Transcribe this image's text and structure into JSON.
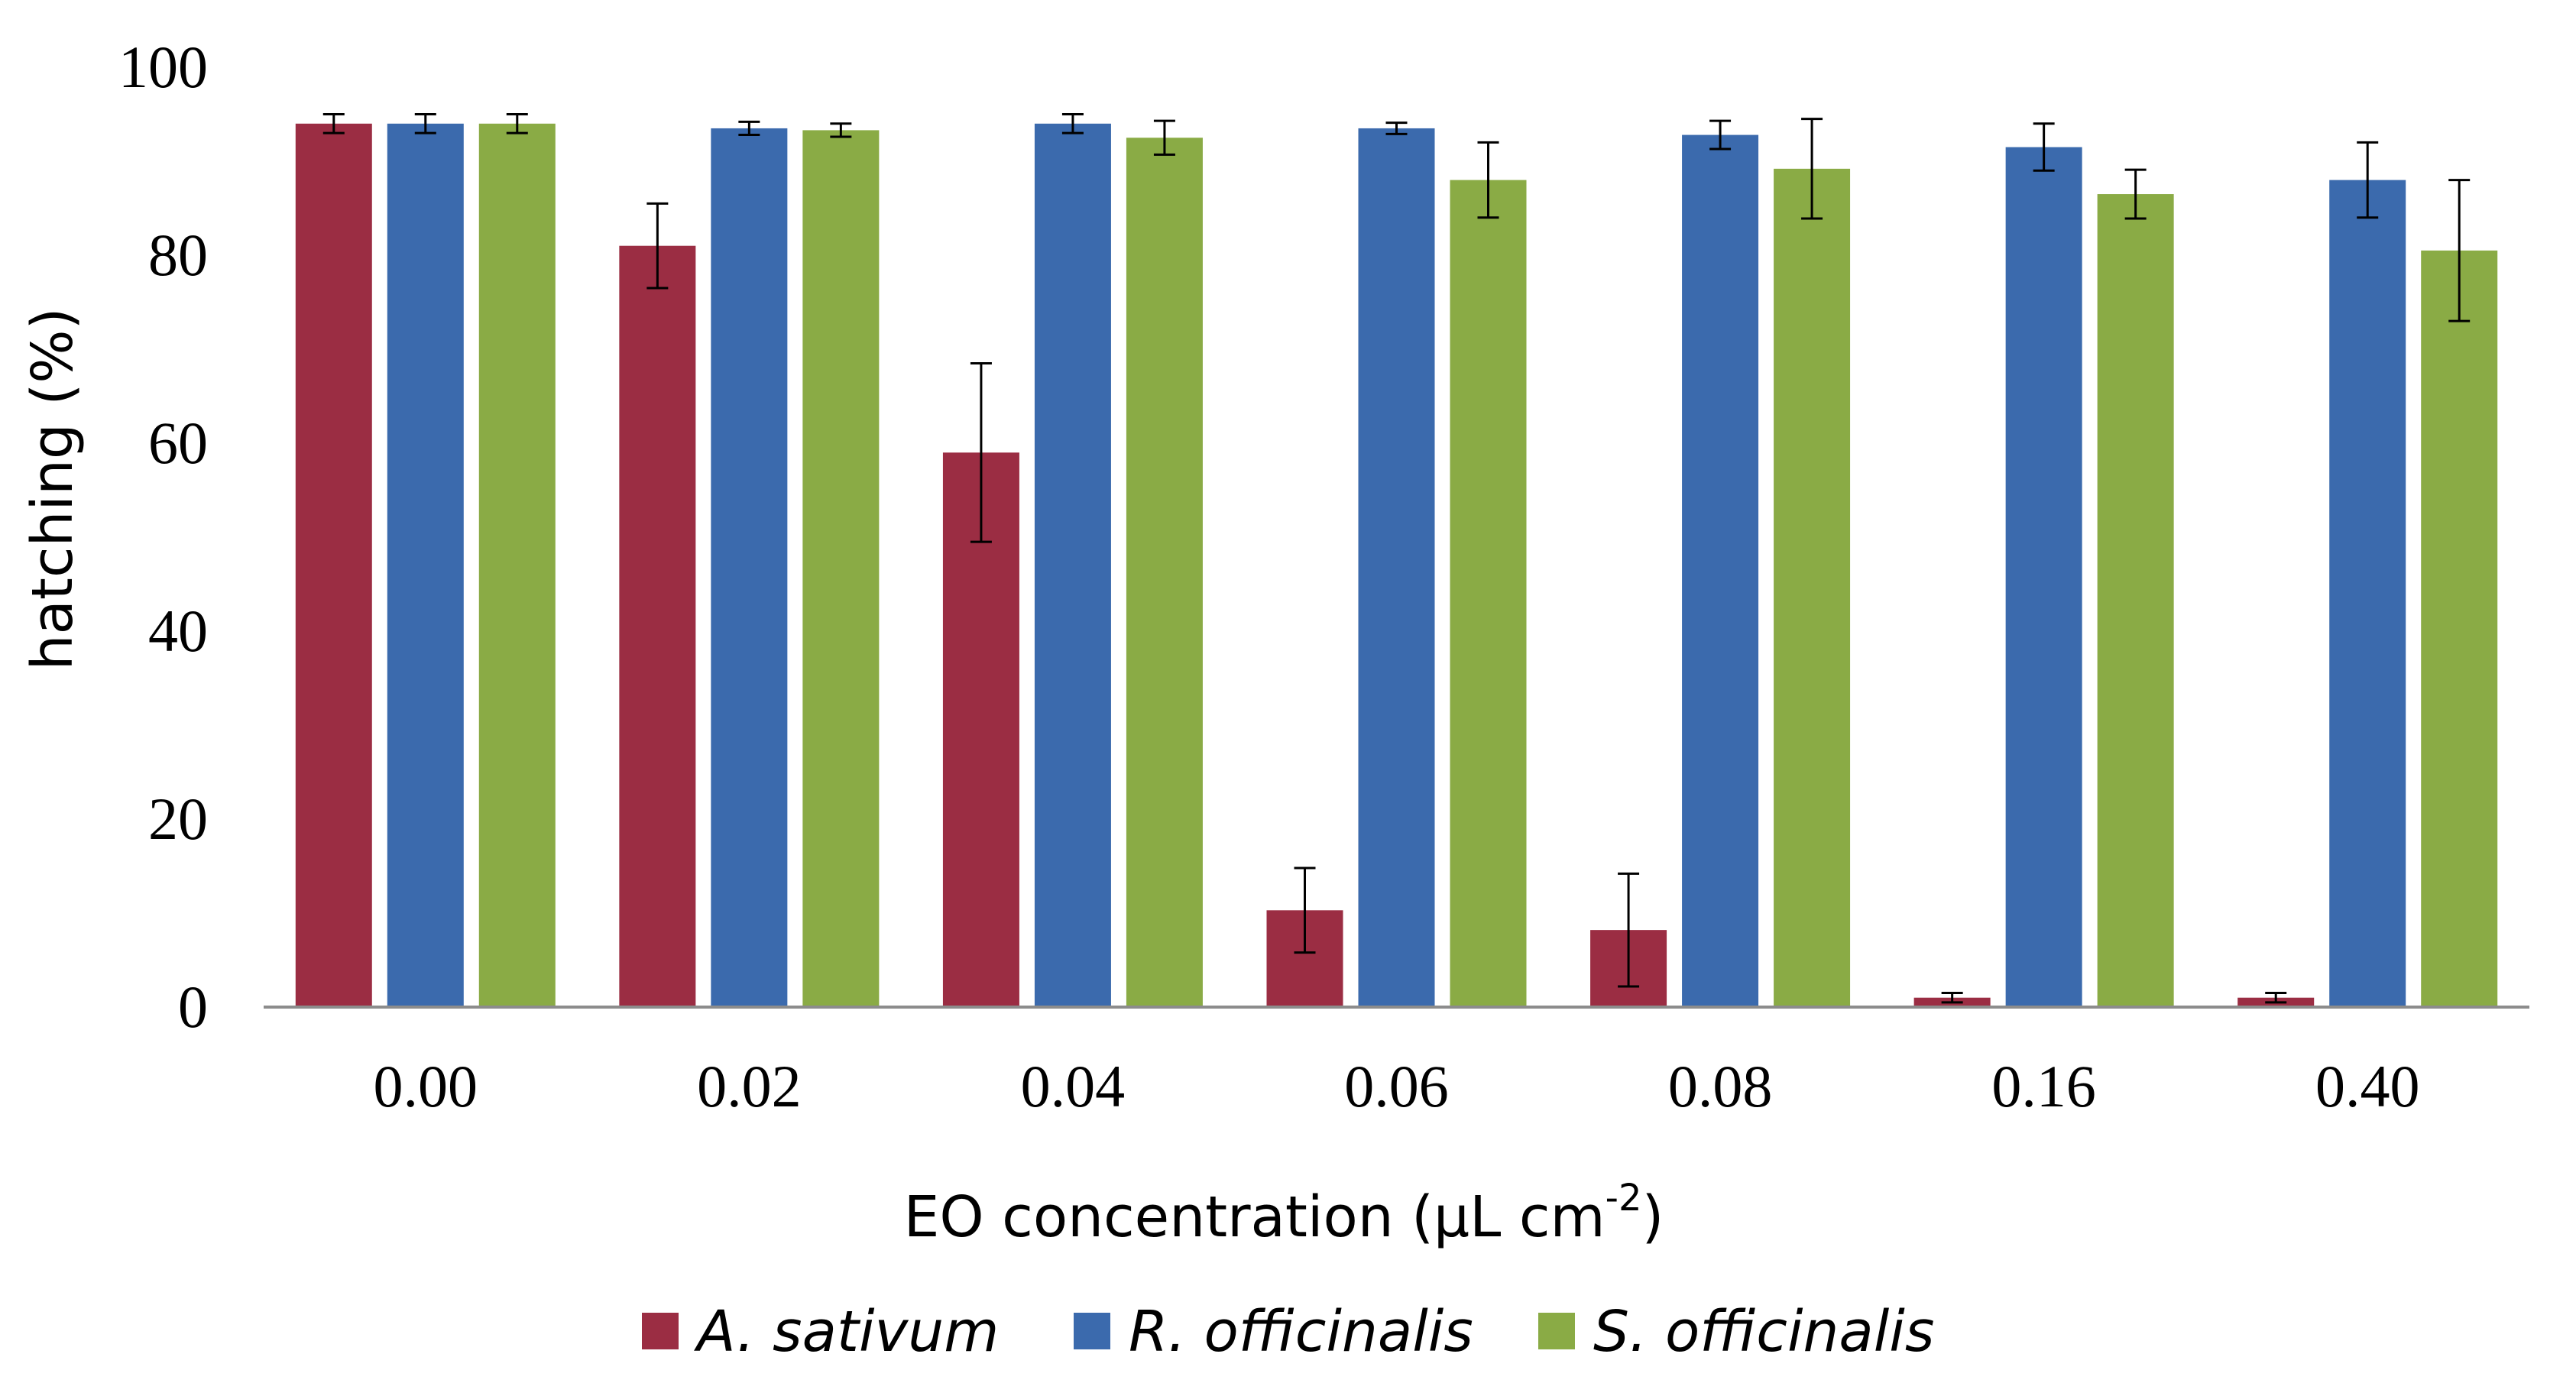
{
  "chart_data": {
    "type": "bar",
    "title": "",
    "xlabel": "EO concentration (µL cm",
    "xlabel_superscript": "-2",
    "xlabel_close": ")",
    "ylabel": "hatching (%)",
    "ylim": [
      0,
      100
    ],
    "yticks": [
      0,
      20,
      40,
      60,
      80,
      100
    ],
    "categories": [
      "0.00",
      "0.02",
      "0.04",
      "0.06",
      "0.08",
      "0.16",
      "0.40"
    ],
    "series": [
      {
        "name": "A. sativum",
        "color": "#9b2d43",
        "values": [
          94,
          81,
          59,
          10.3,
          8.2,
          1.0,
          1.0
        ],
        "errors": [
          1.0,
          4.5,
          9.5,
          4.5,
          6.0,
          0.5,
          0.5
        ]
      },
      {
        "name": "R. officinalis",
        "color": "#3b6aad",
        "values": [
          94,
          93.5,
          94,
          93.5,
          92.8,
          91.5,
          88
        ],
        "errors": [
          1.0,
          0.7,
          1.0,
          0.6,
          1.5,
          2.5,
          4.0
        ]
      },
      {
        "name": "S. officinalis",
        "color": "#8aab45",
        "values": [
          94,
          93.3,
          92.5,
          88,
          89.2,
          86.5,
          80.5
        ],
        "errors": [
          1.0,
          0.7,
          1.8,
          4.0,
          5.3,
          2.6,
          7.5
        ]
      }
    ],
    "grid": false,
    "legend_position": "bottom"
  }
}
